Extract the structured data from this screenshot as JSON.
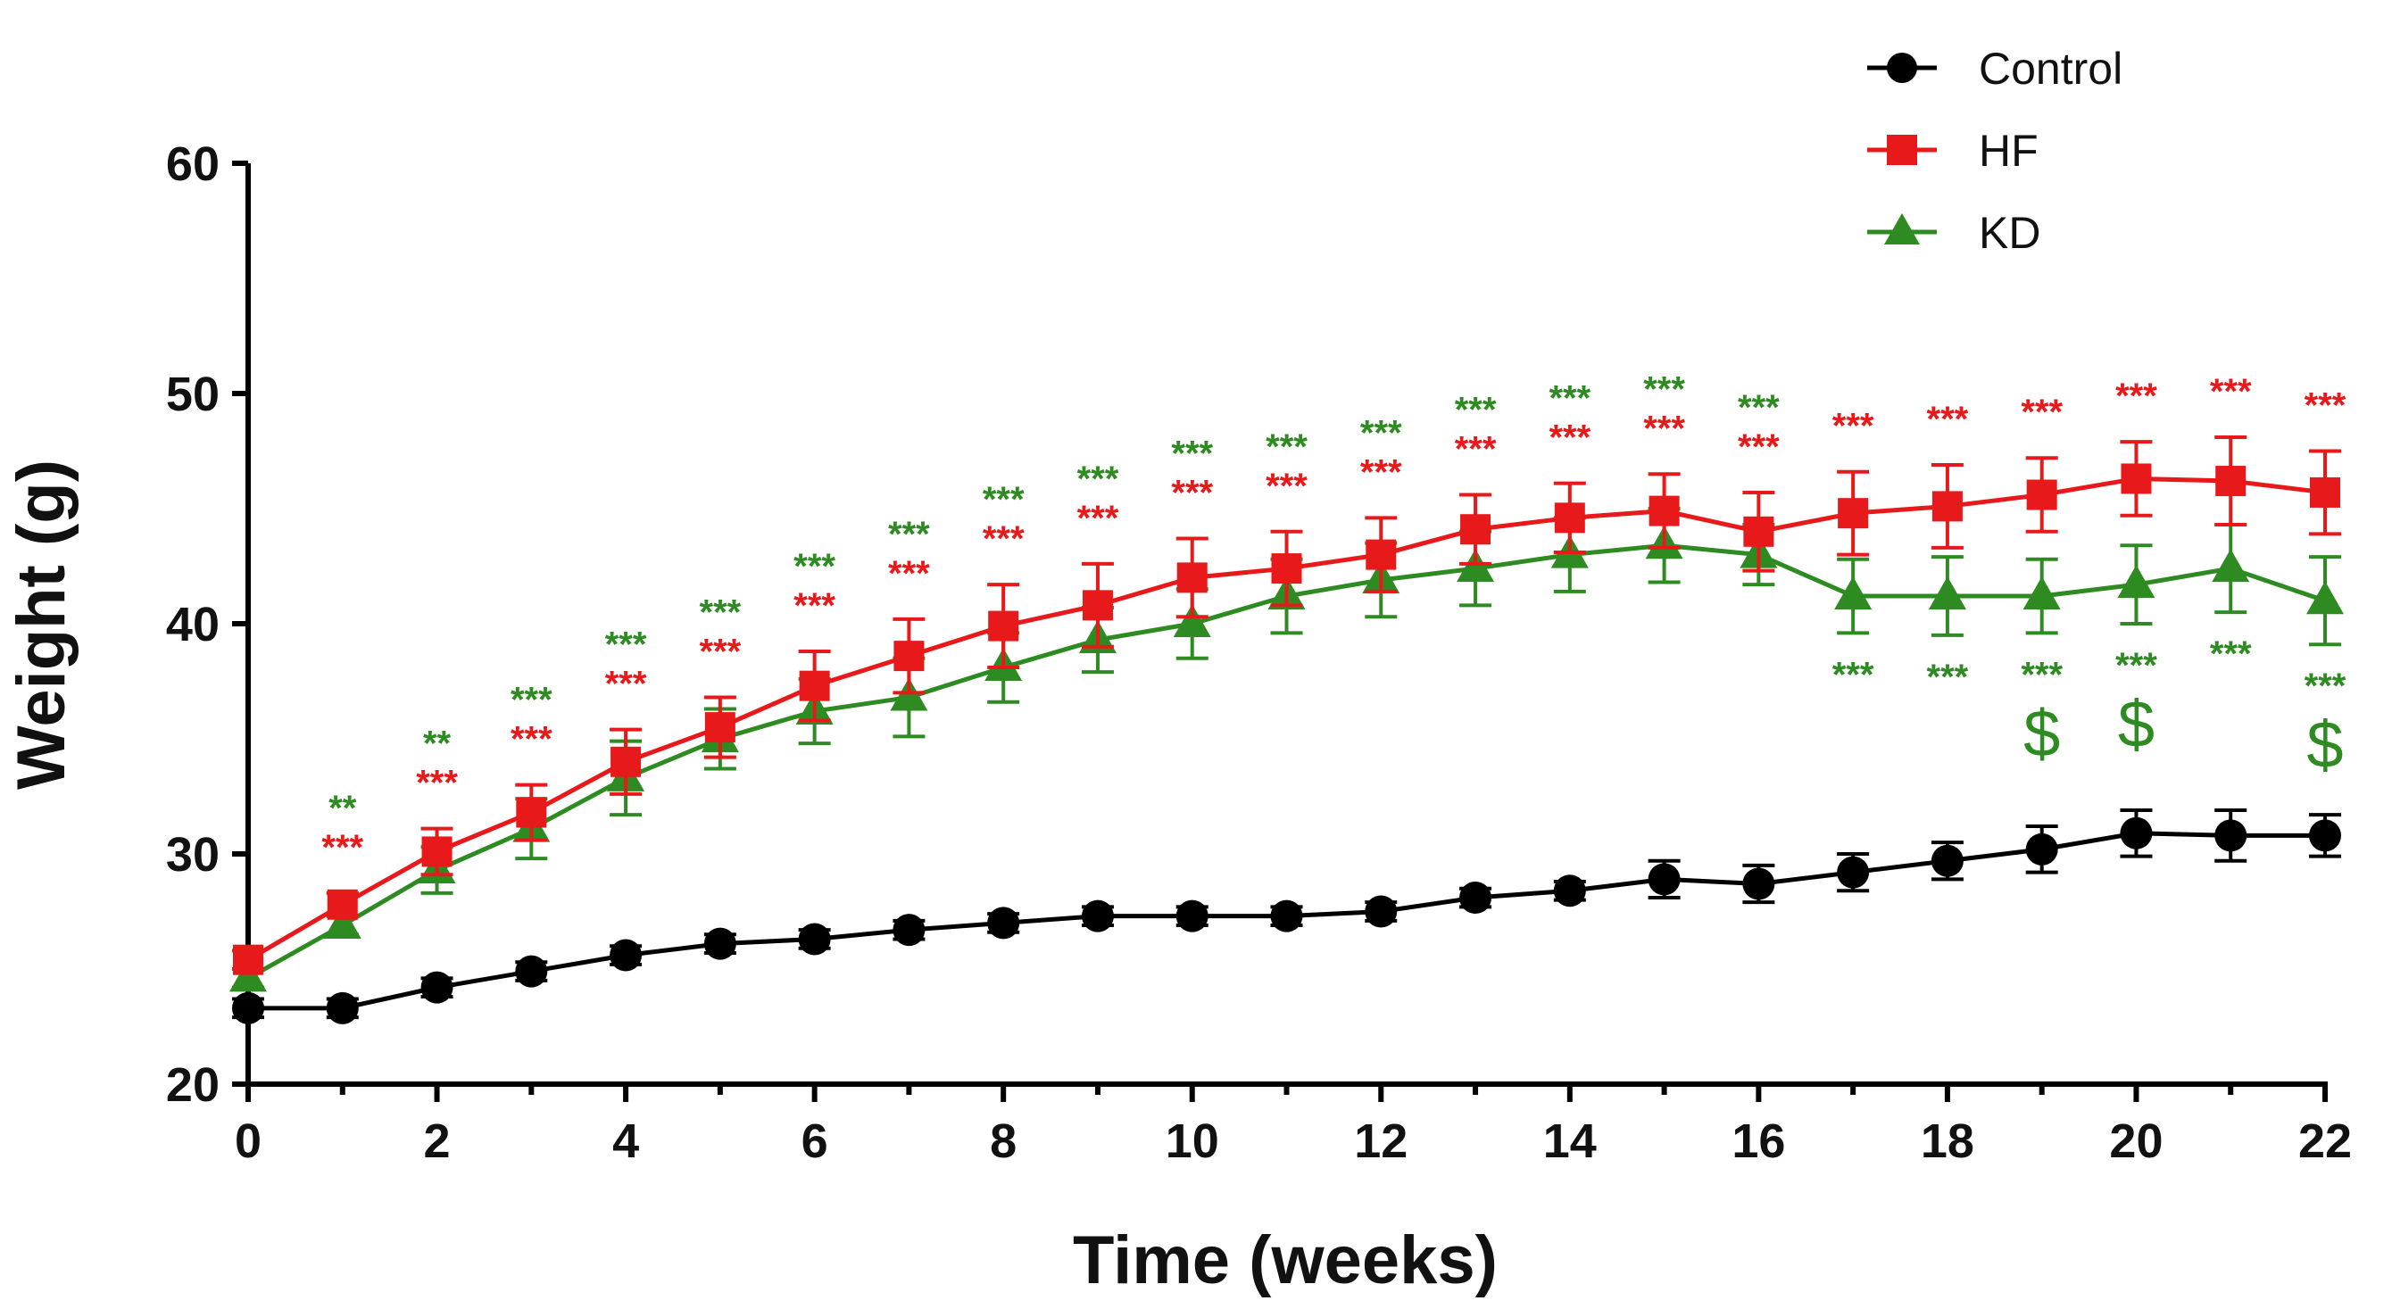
{
  "chart_data": {
    "type": "line",
    "title": "",
    "xlabel": "Time (weeks)",
    "ylabel": "Weight (g)",
    "xlim": [
      0,
      22
    ],
    "ylim": [
      20,
      60
    ],
    "x_ticks": [
      "0",
      "2",
      "4",
      "6",
      "8",
      "10",
      "12",
      "14",
      "16",
      "18",
      "20",
      "22"
    ],
    "y_ticks": [
      "20",
      "30",
      "40",
      "50",
      "60"
    ],
    "legend_position": "top-right",
    "x": [
      0,
      1,
      2,
      3,
      4,
      5,
      6,
      7,
      8,
      9,
      10,
      11,
      12,
      13,
      14,
      15,
      16,
      17,
      18,
      19,
      20,
      21,
      22
    ],
    "series": [
      {
        "name": "Control",
        "color": "#000000",
        "marker": "circle",
        "values": [
          23.3,
          23.3,
          24.2,
          24.9,
          25.6,
          26.1,
          26.3,
          26.7,
          27.0,
          27.3,
          27.3,
          27.3,
          27.5,
          28.1,
          28.4,
          28.9,
          28.7,
          29.2,
          29.7,
          30.2,
          30.9,
          30.8,
          30.8
        ],
        "errors": [
          0.4,
          0.4,
          0.4,
          0.4,
          0.4,
          0.4,
          0.4,
          0.4,
          0.4,
          0.4,
          0.4,
          0.4,
          0.4,
          0.4,
          0.4,
          0.8,
          0.8,
          0.8,
          0.8,
          1.0,
          1.0,
          1.1,
          0.9
        ]
      },
      {
        "name": "HF",
        "color": "#e8191a",
        "marker": "square",
        "values": [
          25.4,
          27.8,
          30.1,
          31.8,
          34.0,
          35.5,
          37.3,
          38.6,
          39.9,
          40.8,
          42.0,
          42.4,
          43.0,
          44.1,
          44.6,
          44.9,
          44.0,
          44.8,
          45.1,
          45.6,
          46.3,
          46.2,
          45.7
        ],
        "errors": [
          0.4,
          0.5,
          1.0,
          1.2,
          1.4,
          1.3,
          1.5,
          1.6,
          1.8,
          1.8,
          1.7,
          1.6,
          1.6,
          1.5,
          1.5,
          1.6,
          1.7,
          1.8,
          1.8,
          1.6,
          1.6,
          1.9,
          1.8
        ]
      },
      {
        "name": "KD",
        "color": "#2e8b22",
        "marker": "triangle",
        "values": [
          24.6,
          26.9,
          29.3,
          31.1,
          33.3,
          35.0,
          36.2,
          36.8,
          38.1,
          39.3,
          40.0,
          41.2,
          41.9,
          42.4,
          43.0,
          43.4,
          43.0,
          41.2,
          41.2,
          41.2,
          41.7,
          42.4,
          41.0
        ],
        "errors": [
          0.4,
          0.4,
          1.0,
          1.3,
          1.6,
          1.3,
          1.4,
          1.7,
          1.5,
          1.4,
          1.5,
          1.6,
          1.6,
          1.6,
          1.6,
          1.6,
          1.3,
          1.6,
          1.7,
          1.6,
          1.7,
          1.9,
          1.9
        ]
      }
    ],
    "annotations": {
      "hf_vs_control": [
        "",
        "***",
        "***",
        "***",
        "***",
        "***",
        "***",
        "***",
        "***",
        "***",
        "***",
        "***",
        "***",
        "***",
        "***",
        "***",
        "***",
        "***",
        "***",
        "***",
        "***",
        "***",
        "***"
      ],
      "kd_vs_control_above": [
        "",
        "**",
        "**",
        "***",
        "***",
        "***",
        "***",
        "***",
        "***",
        "***",
        "***",
        "***",
        "***",
        "***",
        "***",
        "***",
        "***",
        "",
        "",
        "",
        "",
        "",
        ""
      ],
      "kd_vs_control_below": [
        "",
        "",
        "",
        "",
        "",
        "",
        "",
        "",
        "",
        "",
        "",
        "",
        "",
        "",
        "",
        "",
        "",
        "***",
        "***",
        "***",
        "***",
        "***",
        "***"
      ],
      "kd_vs_hf": [
        "",
        "",
        "",
        "",
        "",
        "",
        "",
        "",
        "",
        "",
        "",
        "",
        "",
        "",
        "",
        "",
        "",
        "",
        "",
        "$",
        "$",
        "",
        "$"
      ]
    }
  }
}
